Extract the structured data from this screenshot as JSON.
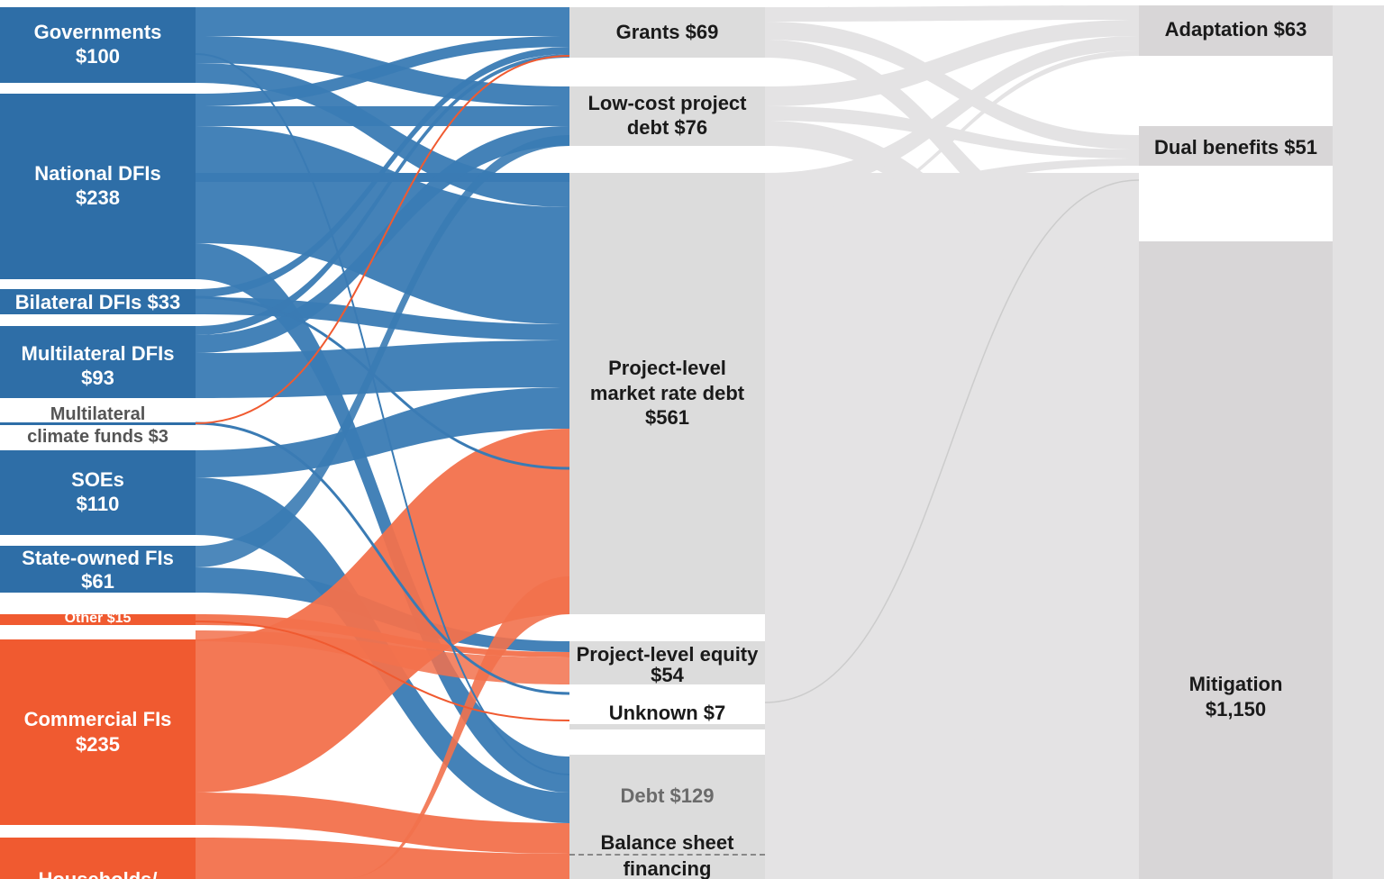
{
  "colors": {
    "public": "#2e6ea7",
    "public_flow": "#3a7bb4",
    "private": "#f05a30",
    "private_flow": "#f2714c",
    "node_grey": "#dcdcdc",
    "flow_grey": "#e4e3e4",
    "use_grey": "#d8d6d7"
  },
  "sources": [
    {
      "id": "gov",
      "label": "Governments $100",
      "line1": "Governments",
      "line2": "$100"
    },
    {
      "id": "ndfi",
      "label": "National DFIs $238",
      "line1": "National DFIs",
      "line2": "$238"
    },
    {
      "id": "bdfi",
      "label": "Bilateral DFIs $33",
      "line1": "Bilateral DFIs $33",
      "line2": ""
    },
    {
      "id": "mdfi",
      "label": "Multilateral DFIs $93",
      "line1": "Multilateral DFIs",
      "line2": "$93"
    },
    {
      "id": "mcf",
      "label": "Multilateral climate funds $3",
      "line1": "Multilateral",
      "line2": "climate funds $3"
    },
    {
      "id": "soe",
      "label": "SOEs $110",
      "line1": "SOEs",
      "line2": "$110"
    },
    {
      "id": "sofi",
      "label": "State-owned FIs $61",
      "line1": "State-owned FIs",
      "line2": "$61"
    },
    {
      "id": "other",
      "label": "Other $15",
      "line1": "Other $15",
      "line2": ""
    },
    {
      "id": "cfi",
      "label": "Commercial FIs $235",
      "line1": "Commercial FIs",
      "line2": "$235"
    },
    {
      "id": "hh",
      "label": "Households/",
      "line1": "Households/",
      "line2": ""
    }
  ],
  "instruments": [
    {
      "id": "grants",
      "line1": "Grants $69",
      "line2": "",
      "line3": ""
    },
    {
      "id": "lowcost",
      "line1": "Low-cost project",
      "line2": "debt $76",
      "line3": ""
    },
    {
      "id": "marketdebt",
      "line1": "Project-level",
      "line2": "market rate debt",
      "line3": "$561"
    },
    {
      "id": "equity",
      "line1": "Project-level equity",
      "line2": "$54",
      "line3": ""
    },
    {
      "id": "unknown",
      "line1": "Unknown $7",
      "line2": "",
      "line3": ""
    },
    {
      "id": "debt",
      "line1": "Debt $129",
      "line2": "",
      "line3": ""
    },
    {
      "id": "balance",
      "line1": "Balance sheet",
      "line2": "financing",
      "line3": ""
    }
  ],
  "uses": [
    {
      "id": "adapt",
      "line1": "Adaptation $63",
      "line2": ""
    },
    {
      "id": "dual",
      "line1": "Dual benefits $51",
      "line2": ""
    },
    {
      "id": "mitig",
      "line1": "Mitigation",
      "line2": "$1,150"
    }
  ]
}
